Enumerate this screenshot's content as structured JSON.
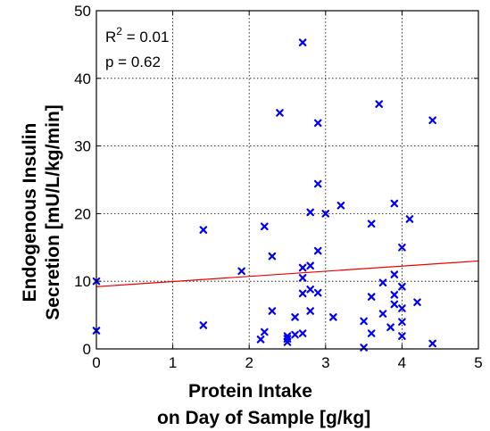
{
  "chart_data": {
    "type": "scatter",
    "xlabel": [
      "Protein Intake",
      "on Day of Sample [g/kg]"
    ],
    "ylabel": [
      "Endogenous Insulin",
      "Secretion [mU/L/kg/min]"
    ],
    "xlim": [
      0,
      5
    ],
    "ylim": [
      0,
      50
    ],
    "xticks": [
      0,
      1,
      2,
      3,
      4,
      5
    ],
    "yticks": [
      0,
      10,
      20,
      30,
      40,
      50
    ],
    "grid": true,
    "annotations": {
      "r2_prefix": "R",
      "r2_sup": "2",
      "r2_value": " = 0.01",
      "p": "p = 0.62"
    },
    "colors": {
      "points": "#0000ee",
      "fit": "#ee0000",
      "grid": "#000000"
    },
    "fit_line": {
      "x": [
        0,
        5
      ],
      "y": [
        9.2,
        13.0
      ]
    },
    "points": [
      {
        "x": 0.0,
        "y": 10.0
      },
      {
        "x": 0.0,
        "y": 2.7
      },
      {
        "x": 1.4,
        "y": 17.6
      },
      {
        "x": 1.4,
        "y": 3.5
      },
      {
        "x": 1.9,
        "y": 11.5
      },
      {
        "x": 2.15,
        "y": 1.4
      },
      {
        "x": 2.2,
        "y": 2.5
      },
      {
        "x": 2.2,
        "y": 18.1
      },
      {
        "x": 2.3,
        "y": 13.7
      },
      {
        "x": 2.3,
        "y": 5.6
      },
      {
        "x": 2.4,
        "y": 34.9
      },
      {
        "x": 2.5,
        "y": 1.9
      },
      {
        "x": 2.5,
        "y": 1.5
      },
      {
        "x": 2.5,
        "y": 1.0
      },
      {
        "x": 2.6,
        "y": 4.7
      },
      {
        "x": 2.6,
        "y": 2.1
      },
      {
        "x": 2.7,
        "y": 45.3
      },
      {
        "x": 2.7,
        "y": 12.0
      },
      {
        "x": 2.7,
        "y": 10.5
      },
      {
        "x": 2.7,
        "y": 8.2
      },
      {
        "x": 2.7,
        "y": 2.3
      },
      {
        "x": 2.8,
        "y": 20.2
      },
      {
        "x": 2.8,
        "y": 12.3
      },
      {
        "x": 2.8,
        "y": 8.8
      },
      {
        "x": 2.8,
        "y": 5.6
      },
      {
        "x": 2.9,
        "y": 33.4
      },
      {
        "x": 2.9,
        "y": 24.4
      },
      {
        "x": 2.9,
        "y": 14.5
      },
      {
        "x": 2.9,
        "y": 8.3
      },
      {
        "x": 3.0,
        "y": 20.0
      },
      {
        "x": 3.1,
        "y": 4.7
      },
      {
        "x": 3.2,
        "y": 21.2
      },
      {
        "x": 3.5,
        "y": 4.1
      },
      {
        "x": 3.5,
        "y": 0.2
      },
      {
        "x": 3.6,
        "y": 18.5
      },
      {
        "x": 3.6,
        "y": 7.7
      },
      {
        "x": 3.6,
        "y": 2.3
      },
      {
        "x": 3.7,
        "y": 36.2
      },
      {
        "x": 3.75,
        "y": 9.8
      },
      {
        "x": 3.75,
        "y": 5.2
      },
      {
        "x": 3.85,
        "y": 3.2
      },
      {
        "x": 3.9,
        "y": 21.5
      },
      {
        "x": 3.9,
        "y": 11.0
      },
      {
        "x": 3.9,
        "y": 8.0
      },
      {
        "x": 3.9,
        "y": 6.6
      },
      {
        "x": 4.0,
        "y": 15.0
      },
      {
        "x": 4.0,
        "y": 9.2
      },
      {
        "x": 4.0,
        "y": 6.0
      },
      {
        "x": 4.0,
        "y": 4.0
      },
      {
        "x": 4.0,
        "y": 1.9
      },
      {
        "x": 4.1,
        "y": 19.2
      },
      {
        "x": 4.2,
        "y": 6.9
      },
      {
        "x": 4.4,
        "y": 33.8
      },
      {
        "x": 4.4,
        "y": 0.8
      }
    ]
  }
}
